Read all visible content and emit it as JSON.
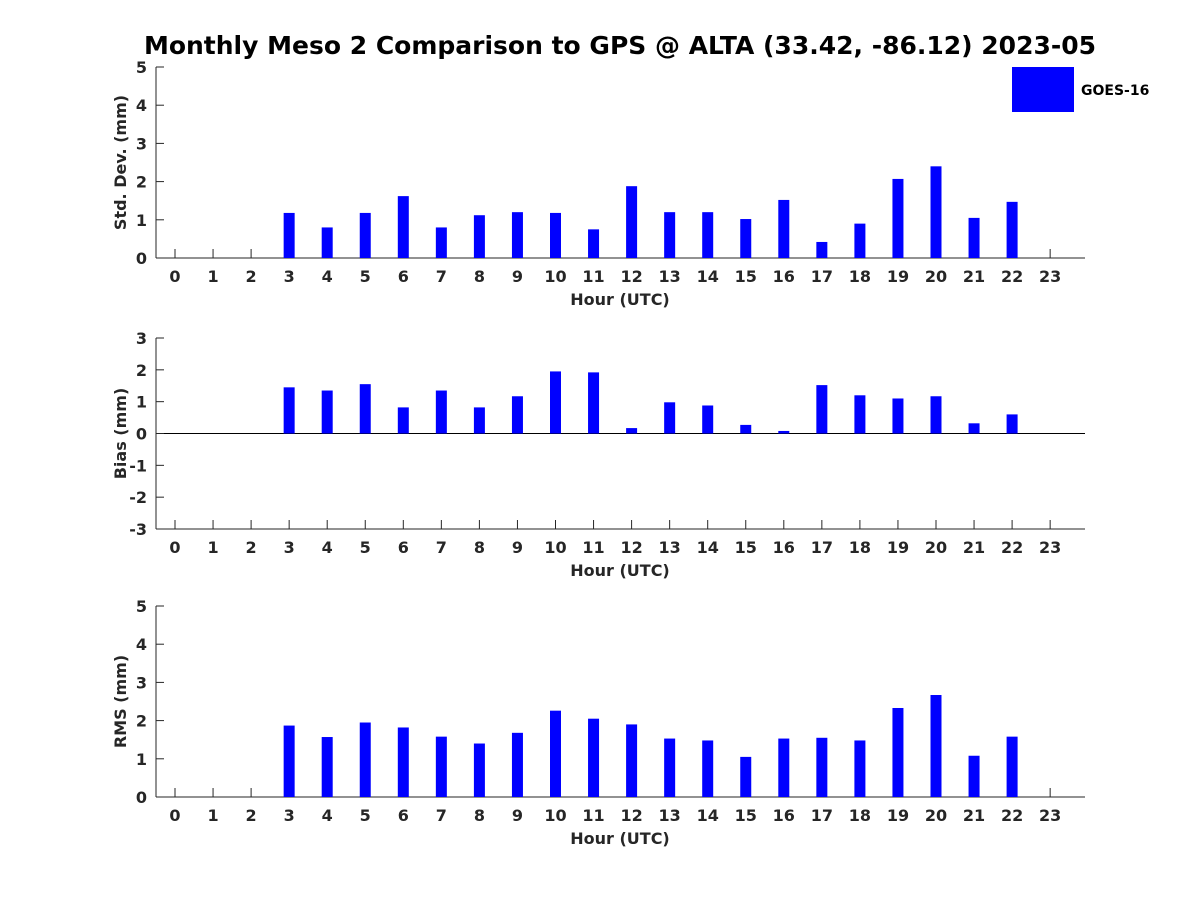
{
  "chart_data": {
    "type": "bar",
    "title": "Monthly Meso 2 Comparison to GPS @ ALTA (33.42, -86.12) 2023-05",
    "legend": {
      "label": "GOES-16",
      "color": "#0000ff",
      "placement": "top-right"
    },
    "series_color": "#0000ff",
    "categories": [
      "0",
      "1",
      "2",
      "3",
      "4",
      "5",
      "6",
      "7",
      "8",
      "9",
      "10",
      "11",
      "12",
      "13",
      "14",
      "15",
      "16",
      "17",
      "18",
      "19",
      "20",
      "21",
      "22",
      "23"
    ],
    "panels": [
      {
        "name": "std",
        "ylabel": "Std. Dev. (mm)",
        "xlabel": "Hour (UTC)",
        "ylim": [
          0,
          5
        ],
        "yticks": [
          0,
          1,
          2,
          3,
          4,
          5
        ],
        "zero_line": false,
        "values": [
          null,
          null,
          null,
          1.18,
          0.8,
          1.18,
          1.62,
          0.8,
          1.12,
          1.2,
          1.18,
          0.75,
          1.88,
          1.2,
          1.2,
          1.02,
          1.52,
          0.42,
          0.9,
          2.07,
          2.4,
          1.05,
          1.47,
          null
        ]
      },
      {
        "name": "bias",
        "ylabel": "Bias (mm)",
        "xlabel": "Hour (UTC)",
        "ylim": [
          -3,
          3
        ],
        "yticks": [
          -3,
          -2,
          -1,
          0,
          1,
          2,
          3
        ],
        "zero_line": true,
        "values": [
          null,
          null,
          null,
          1.45,
          1.35,
          1.55,
          0.82,
          1.35,
          0.82,
          1.17,
          1.95,
          1.92,
          0.17,
          0.98,
          0.88,
          0.27,
          0.08,
          1.52,
          1.2,
          1.1,
          1.17,
          0.32,
          0.6,
          null
        ]
      },
      {
        "name": "rms",
        "ylabel": "RMS (mm)",
        "xlabel": "Hour (UTC)",
        "ylim": [
          0,
          5
        ],
        "yticks": [
          0,
          1,
          2,
          3,
          4,
          5
        ],
        "zero_line": false,
        "values": [
          null,
          null,
          null,
          1.87,
          1.57,
          1.95,
          1.82,
          1.58,
          1.4,
          1.68,
          2.26,
          2.05,
          1.9,
          1.53,
          1.48,
          1.05,
          1.53,
          1.55,
          1.48,
          2.33,
          2.67,
          1.08,
          1.58,
          null
        ]
      }
    ]
  }
}
